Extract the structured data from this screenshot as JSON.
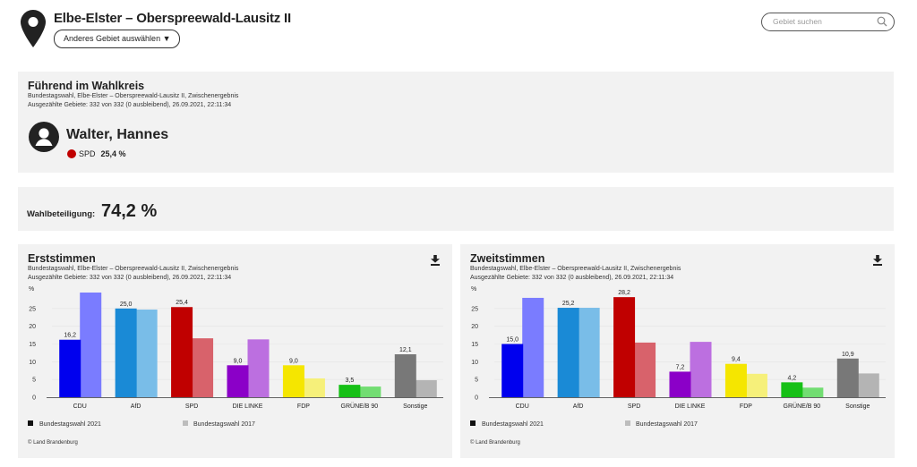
{
  "header": {
    "title": "Elbe-Elster – Oberspreewald-Lausitz II",
    "area_button": "Anderes Gebiet auswählen ▼",
    "search_placeholder": "Gebiet suchen",
    "icons": [
      "map-pin-icon",
      "search-icon"
    ]
  },
  "leading": {
    "title": "Führend im Wahlkreis",
    "subtitle": "Bundestagswahl, Elbe-Elster – Oberspreewald-Lausitz II, Zwischenergebnis",
    "counted": "Ausgezählte Gebiete: 332 von 332 (0 ausbleibend), 26.09.2021, 22:11:34",
    "candidate": "Walter, Hannes",
    "party": "SPD",
    "share": "25,4 %",
    "party_color": "#c00000"
  },
  "turnout": {
    "label": "Wahlbeteiligung:",
    "value": "74,2 %"
  },
  "chart_data": [
    {
      "type": "bar",
      "title": "Erststimmen",
      "subtitle": "Bundestagswahl, Elbe-Elster – Oberspreewald-Lausitz II, Zwischenergebnis",
      "counted": "Ausgezählte Gebiete: 332 von 332 (0 ausbleibend), 26.09.2021, 22:11:34",
      "ylabel": "%",
      "ylim": [
        0,
        30
      ],
      "yticks": [
        0,
        5,
        10,
        15,
        20,
        25
      ],
      "categories": [
        "CDU",
        "AfD",
        "SPD",
        "DIE LINKE",
        "FDP",
        "GRÜNE/B 90",
        "Sonstige"
      ],
      "colors": [
        "#0000ee",
        "#1a8ad6",
        "#c00000",
        "#8b00c8",
        "#f5e600",
        "#16c016",
        "#787878"
      ],
      "colors_2017": [
        "#7a7cff",
        "#79bde8",
        "#d8626b",
        "#bc6fe0",
        "#f6f07a",
        "#72dd72",
        "#b4b4b4"
      ],
      "series": [
        {
          "name": "Bundestagswahl 2021",
          "values": [
            16.2,
            25.0,
            25.4,
            9.0,
            9.0,
            3.5,
            12.1
          ],
          "labels": [
            "16,2",
            "25,0",
            "25,4",
            "9,0",
            "9,0",
            "3,5",
            "12,1"
          ]
        },
        {
          "name": "Bundestagswahl 2017",
          "values": [
            29.5,
            24.7,
            16.6,
            16.3,
            5.3,
            3.0,
            4.8
          ]
        }
      ],
      "legend": [
        "Bundestagswahl 2021",
        "Bundestagswahl 2017"
      ],
      "legend_position": "bottom",
      "copyright": "© Land Brandenburg"
    },
    {
      "type": "bar",
      "title": "Zweitstimmen",
      "subtitle": "Bundestagswahl, Elbe-Elster – Oberspreewald-Lausitz II, Zwischenergebnis",
      "counted": "Ausgezählte Gebiete: 332 von 332 (0 ausbleibend), 26.09.2021, 22:11:34",
      "ylabel": "%",
      "ylim": [
        0,
        30
      ],
      "yticks": [
        0,
        5,
        10,
        15,
        20,
        25
      ],
      "categories": [
        "CDU",
        "AfD",
        "SPD",
        "DIE LINKE",
        "FDP",
        "GRÜNE/B 90",
        "Sonstige"
      ],
      "colors": [
        "#0000ee",
        "#1a8ad6",
        "#c00000",
        "#8b00c8",
        "#f5e600",
        "#16c016",
        "#787878"
      ],
      "colors_2017": [
        "#7a7cff",
        "#79bde8",
        "#d8626b",
        "#bc6fe0",
        "#f6f07a",
        "#72dd72",
        "#b4b4b4"
      ],
      "series": [
        {
          "name": "Bundestagswahl 2021",
          "values": [
            15.0,
            25.2,
            28.2,
            7.2,
            9.4,
            4.2,
            10.9
          ],
          "labels": [
            "15,0",
            "25,2",
            "28,2",
            "7,2",
            "9,4",
            "4,2",
            "10,9"
          ]
        },
        {
          "name": "Bundestagswahl 2017",
          "values": [
            28.0,
            25.2,
            15.4,
            15.6,
            6.6,
            2.7,
            6.7
          ]
        }
      ],
      "legend": [
        "Bundestagswahl 2021",
        "Bundestagswahl 2017"
      ],
      "legend_position": "bottom",
      "copyright": "© Land Brandenburg"
    }
  ]
}
